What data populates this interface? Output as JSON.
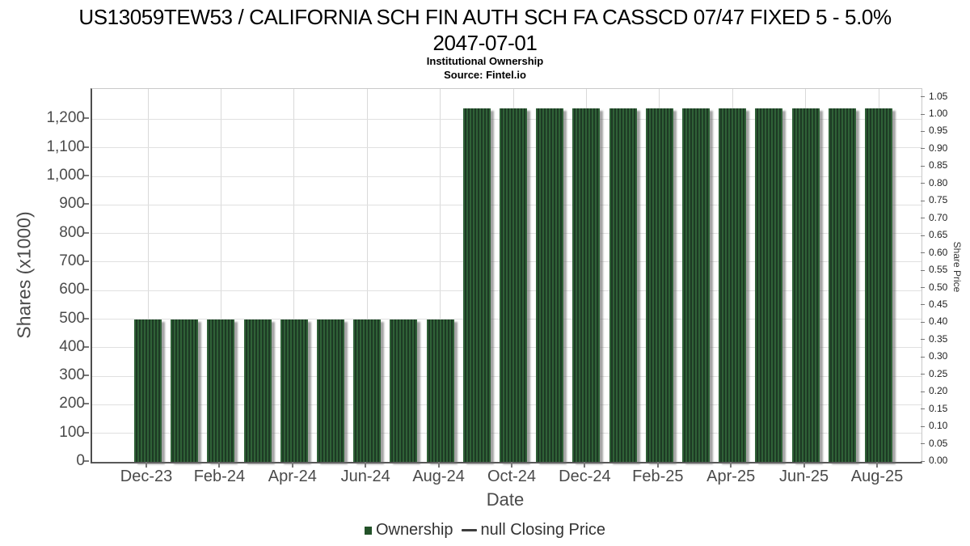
{
  "header": {
    "title_line1": "US13059TEW53 / CALIFORNIA SCH FIN AUTH SCH FA CASSCD 07/47 FIXED 5 - 5.0%",
    "title_line2": "2047-07-01",
    "subtitle": "Institutional Ownership",
    "source": "Source: Fintel.io"
  },
  "chart_data": {
    "type": "bar",
    "title": "US13059TEW53 / CALIFORNIA SCH FIN AUTH SCH FA CASSCD 07/47 FIXED 5 - 5.0% 2047-07-01",
    "subtitle": "Institutional Ownership",
    "source": "Source: Fintel.io",
    "xlabel": "Date",
    "ylabel_left": "Shares (x1000)",
    "ylabel_right": "Share Price",
    "categories": [
      "Dec-23",
      "Jan-24",
      "Feb-24",
      "Mar-24",
      "Apr-24",
      "May-24",
      "Jun-24",
      "Jul-24",
      "Aug-24",
      "Sep-24",
      "Oct-24",
      "Nov-24",
      "Dec-24",
      "Jan-25",
      "Feb-25",
      "Mar-25",
      "Apr-25",
      "May-25",
      "Jun-25",
      "Jul-25",
      "Aug-25"
    ],
    "series": [
      {
        "name": "Ownership",
        "type": "bar",
        "axis": "left",
        "values": [
          500,
          500,
          500,
          500,
          500,
          500,
          500,
          500,
          500,
          1238,
          1238,
          1238,
          1238,
          1238,
          1238,
          1238,
          1238,
          1238,
          1238,
          1238,
          1238
        ]
      },
      {
        "name": "null Closing Price",
        "type": "line",
        "axis": "right",
        "values": []
      }
    ],
    "x_tick_labels": [
      "Dec-23",
      "Feb-24",
      "Apr-24",
      "Jun-24",
      "Aug-24",
      "Oct-24",
      "Dec-24",
      "Feb-25",
      "Apr-25",
      "Jun-25",
      "Aug-25"
    ],
    "y_left_ticks": {
      "values": [
        0,
        100,
        200,
        300,
        400,
        500,
        600,
        700,
        800,
        900,
        1000,
        1100,
        1200
      ],
      "labels": [
        "0",
        "100",
        "200",
        "300",
        "400",
        "500",
        "600",
        "700",
        "800",
        "900",
        "1,000",
        "1,100",
        "1,200"
      ]
    },
    "y_right_ticks": {
      "values": [
        0.0,
        0.05,
        0.1,
        0.15,
        0.2,
        0.25,
        0.3,
        0.35,
        0.4,
        0.45,
        0.5,
        0.55,
        0.6,
        0.65,
        0.7,
        0.75,
        0.8,
        0.85,
        0.9,
        0.95,
        1.0,
        1.05
      ],
      "labels": [
        "0.00",
        "0.05",
        "0.10",
        "0.15",
        "0.20",
        "0.25",
        "0.30",
        "0.35",
        "0.40",
        "0.45",
        "0.50",
        "0.55",
        "0.60",
        "0.65",
        "0.70",
        "0.75",
        "0.80",
        "0.85",
        "0.90",
        "0.95",
        "1.00",
        "1.05"
      ]
    },
    "ylim_left": [
      0,
      1306
    ],
    "ylim_right": [
      0,
      1.057
    ],
    "grid": true,
    "legend_position": "bottom"
  },
  "legend": {
    "items": [
      {
        "label": "Ownership",
        "marker": "square",
        "color": "#235229"
      },
      {
        "label": "null Closing Price",
        "marker": "line",
        "color": "#3d3d3d"
      }
    ]
  },
  "colors": {
    "bar_stripe_light": "#2f6137",
    "bar_stripe_dark": "#1d3a24",
    "bar_shadow": "#9b9b9b",
    "grid_line": "#e0e0e0",
    "axis_line": "#4d4d4d",
    "tick_text": "#4a4a4a",
    "title_text": "#000000"
  }
}
